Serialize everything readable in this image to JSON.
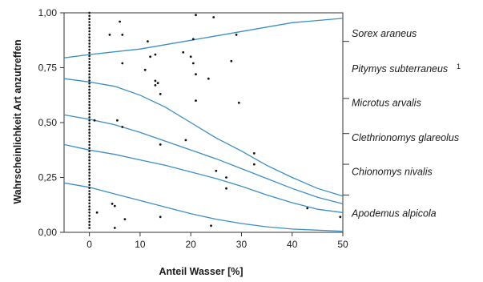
{
  "chart_data": {
    "type": "line",
    "xlabel": "Anteil Wasser [%]",
    "ylabel": "Wahrscheinlichkeit Art anzutreffen",
    "xlim": [
      -5,
      50
    ],
    "ylim": [
      0,
      1
    ],
    "x_ticks": [
      {
        "value": 0,
        "label": "0"
      },
      {
        "value": 10,
        "label": "10"
      },
      {
        "value": 20,
        "label": "20"
      },
      {
        "value": 30,
        "label": "30"
      },
      {
        "value": 40,
        "label": "40"
      },
      {
        "value": 50,
        "label": "50"
      }
    ],
    "y_ticks": [
      {
        "value": 0,
        "label": "0,00"
      },
      {
        "value": 0.25,
        "label": "0,25"
      },
      {
        "value": 0.5,
        "label": "0,50"
      },
      {
        "value": 0.75,
        "label": "0,75"
      },
      {
        "value": 1,
        "label": "1,00"
      }
    ],
    "curve_color": "#3b8fc4",
    "boundaries": [
      {
        "points": [
          [
            -5,
            0.795
          ],
          [
            0,
            0.81
          ],
          [
            10,
            0.835
          ],
          [
            20,
            0.875
          ],
          [
            30,
            0.915
          ],
          [
            40,
            0.955
          ],
          [
            50,
            0.975
          ]
        ]
      },
      {
        "points": [
          [
            -5,
            0.7
          ],
          [
            0,
            0.685
          ],
          [
            5,
            0.665
          ],
          [
            10,
            0.625
          ],
          [
            15,
            0.57
          ],
          [
            20,
            0.5
          ],
          [
            25,
            0.43
          ],
          [
            30,
            0.37
          ],
          [
            35,
            0.305
          ],
          [
            40,
            0.25
          ],
          [
            45,
            0.2
          ],
          [
            50,
            0.165
          ]
        ]
      },
      {
        "points": [
          [
            -5,
            0.535
          ],
          [
            0,
            0.515
          ],
          [
            5,
            0.49
          ],
          [
            10,
            0.455
          ],
          [
            15,
            0.415
          ],
          [
            20,
            0.375
          ],
          [
            25,
            0.335
          ],
          [
            30,
            0.29
          ],
          [
            35,
            0.245
          ],
          [
            40,
            0.2
          ],
          [
            45,
            0.16
          ],
          [
            50,
            0.13
          ]
        ]
      },
      {
        "points": [
          [
            -5,
            0.4
          ],
          [
            0,
            0.375
          ],
          [
            5,
            0.355
          ],
          [
            10,
            0.33
          ],
          [
            15,
            0.305
          ],
          [
            20,
            0.275
          ],
          [
            25,
            0.245
          ],
          [
            30,
            0.21
          ],
          [
            35,
            0.17
          ],
          [
            40,
            0.135
          ],
          [
            45,
            0.105
          ],
          [
            50,
            0.09
          ]
        ]
      },
      {
        "points": [
          [
            -5,
            0.225
          ],
          [
            0,
            0.205
          ],
          [
            5,
            0.175
          ],
          [
            10,
            0.145
          ],
          [
            15,
            0.115
          ],
          [
            20,
            0.085
          ],
          [
            25,
            0.06
          ],
          [
            30,
            0.04
          ],
          [
            35,
            0.025
          ],
          [
            40,
            0.015
          ],
          [
            45,
            0.01
          ],
          [
            50,
            0.005
          ]
        ]
      }
    ],
    "species": [
      {
        "label": "Sorex araneus",
        "superscript": "",
        "y_center": 0.905
      },
      {
        "label": "Pitymys subterraneus",
        "superscript": "1",
        "y_center": 0.745
      },
      {
        "label": "Microtus arvalis",
        "superscript": "",
        "y_center": 0.59
      },
      {
        "label": "Clethrionomys glareolus",
        "superscript": "",
        "y_center": 0.43
      },
      {
        "label": "Chionomys nivalis",
        "superscript": "",
        "y_center": 0.275
      },
      {
        "label": "Apodemus alpicola",
        "superscript": "",
        "y_center": 0.085
      }
    ],
    "right_ticks": [
      0.87,
      0.61,
      0.45,
      0.31,
      0.17
    ],
    "column_points": {
      "x": 0,
      "y_from": 0.02,
      "y_to": 1.0,
      "step": 0.014
    },
    "points": [
      [
        1,
        0.51
      ],
      [
        1.5,
        0.09
      ],
      [
        4,
        0.9
      ],
      [
        4.5,
        0.13
      ],
      [
        5,
        0.02
      ],
      [
        5,
        0.12
      ],
      [
        5.5,
        0.51
      ],
      [
        6,
        0.96
      ],
      [
        6.5,
        0.9
      ],
      [
        6.5,
        0.77
      ],
      [
        6.5,
        0.48
      ],
      [
        7,
        0.06
      ],
      [
        11,
        0.74
      ],
      [
        11.5,
        0.87
      ],
      [
        12,
        0.8
      ],
      [
        13,
        0.81
      ],
      [
        13,
        0.69
      ],
      [
        13,
        0.67
      ],
      [
        13.5,
        0.68
      ],
      [
        14,
        0.63
      ],
      [
        14,
        0.4
      ],
      [
        14,
        0.07
      ],
      [
        18.5,
        0.82
      ],
      [
        19,
        0.42
      ],
      [
        20,
        0.8
      ],
      [
        20.5,
        0.77
      ],
      [
        20.5,
        0.88
      ],
      [
        21,
        0.99
      ],
      [
        21,
        0.72
      ],
      [
        21,
        0.6
      ],
      [
        23.5,
        0.7
      ],
      [
        24,
        0.03
      ],
      [
        24.5,
        0.98
      ],
      [
        25,
        0.28
      ],
      [
        27,
        0.25
      ],
      [
        27,
        0.2
      ],
      [
        28,
        0.78
      ],
      [
        29,
        0.9
      ],
      [
        29.5,
        0.59
      ],
      [
        32.5,
        0.36
      ],
      [
        32.5,
        0.31
      ],
      [
        43,
        0.11
      ],
      [
        49.5,
        0.07
      ]
    ]
  }
}
